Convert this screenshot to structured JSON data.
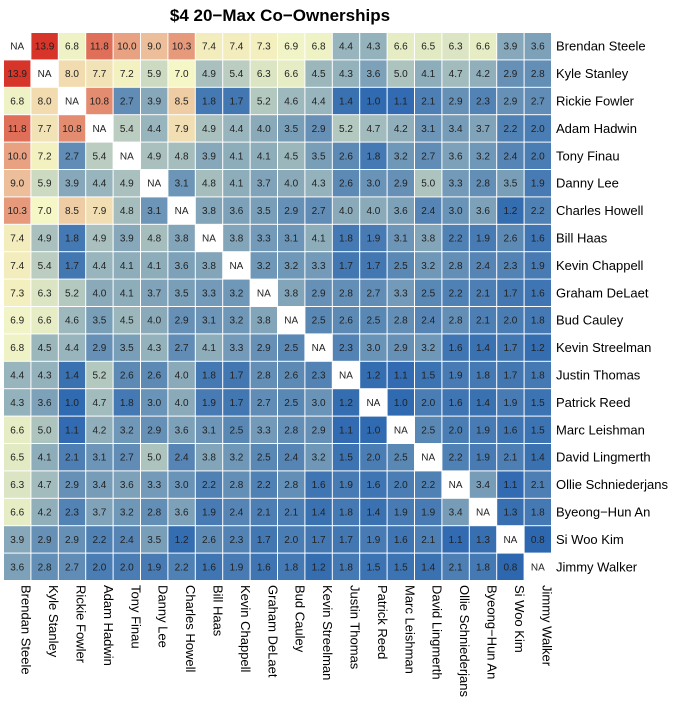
{
  "chart_data": {
    "type": "heatmap",
    "title": "$4 20−Max Co−Ownerships",
    "na_label": "NA",
    "players": [
      "Brendan Steele",
      "Kyle Stanley",
      "Rickie Fowler",
      "Adam Hadwin",
      "Tony Finau",
      "Danny Lee",
      "Charles Howell",
      "Bill Haas",
      "Kevin Chappell",
      "Graham DeLaet",
      "Bud Cauley",
      "Kevin Streelman",
      "Justin Thomas",
      "Patrick Reed",
      "Marc Leishman",
      "David Lingmerth",
      "Ollie Schniederjans",
      "Byeong−Hun An",
      "Si Woo Kim",
      "Jimmy Walker"
    ],
    "values": [
      [
        null,
        13.9,
        6.8,
        11.8,
        10.0,
        9.0,
        10.3,
        7.4,
        7.4,
        7.3,
        6.9,
        6.8,
        4.4,
        4.3,
        6.6,
        6.5,
        6.3,
        6.6,
        3.9,
        3.6
      ],
      [
        13.9,
        null,
        8.0,
        7.7,
        7.2,
        5.9,
        7.0,
        4.9,
        5.4,
        6.3,
        6.6,
        4.5,
        4.3,
        3.6,
        5.0,
        4.1,
        4.7,
        4.2,
        2.9,
        2.8
      ],
      [
        6.8,
        8.0,
        null,
        10.8,
        2.7,
        3.9,
        8.5,
        1.8,
        1.7,
        5.2,
        4.6,
        4.4,
        1.4,
        1.0,
        1.1,
        2.1,
        2.9,
        2.3,
        2.9,
        2.7
      ],
      [
        11.8,
        7.7,
        10.8,
        null,
        5.4,
        4.4,
        7.9,
        4.9,
        4.4,
        4.0,
        3.5,
        2.9,
        5.2,
        4.7,
        4.2,
        3.1,
        3.4,
        3.7,
        2.2,
        2.0
      ],
      [
        10.0,
        7.2,
        2.7,
        5.4,
        null,
        4.9,
        4.8,
        3.9,
        4.1,
        4.1,
        4.5,
        3.5,
        2.6,
        1.8,
        3.2,
        2.7,
        3.6,
        3.2,
        2.4,
        2.0
      ],
      [
        9.0,
        5.9,
        3.9,
        4.4,
        4.9,
        null,
        3.1,
        4.8,
        4.1,
        3.7,
        4.0,
        4.3,
        2.6,
        3.0,
        2.9,
        5.0,
        3.3,
        2.8,
        3.5,
        1.9
      ],
      [
        10.3,
        7.0,
        8.5,
        7.9,
        4.8,
        3.1,
        null,
        3.8,
        3.6,
        3.5,
        2.9,
        2.7,
        4.0,
        4.0,
        3.6,
        2.4,
        3.0,
        3.6,
        1.2,
        2.2
      ],
      [
        7.4,
        4.9,
        1.8,
        4.9,
        3.9,
        4.8,
        3.8,
        null,
        3.8,
        3.3,
        3.1,
        4.1,
        1.8,
        1.9,
        3.1,
        3.8,
        2.2,
        1.9,
        2.6,
        1.6
      ],
      [
        7.4,
        5.4,
        1.7,
        4.4,
        4.1,
        4.1,
        3.6,
        3.8,
        null,
        3.2,
        3.2,
        3.3,
        1.7,
        1.7,
        2.5,
        3.2,
        2.8,
        2.4,
        2.3,
        1.9
      ],
      [
        7.3,
        6.3,
        5.2,
        4.0,
        4.1,
        3.7,
        3.5,
        3.3,
        3.2,
        null,
        3.8,
        2.9,
        2.8,
        2.7,
        3.3,
        2.5,
        2.2,
        2.1,
        1.7,
        1.6
      ],
      [
        6.9,
        6.6,
        4.6,
        3.5,
        4.5,
        4.0,
        2.9,
        3.1,
        3.2,
        3.8,
        null,
        2.5,
        2.6,
        2.5,
        2.8,
        2.4,
        2.8,
        2.1,
        2.0,
        1.8
      ],
      [
        6.8,
        4.5,
        4.4,
        2.9,
        3.5,
        4.3,
        2.7,
        4.1,
        3.3,
        2.9,
        2.5,
        null,
        2.3,
        3.0,
        2.9,
        3.2,
        1.6,
        1.4,
        1.7,
        1.2
      ],
      [
        4.4,
        4.3,
        1.4,
        5.2,
        2.6,
        2.6,
        4.0,
        1.8,
        1.7,
        2.8,
        2.6,
        2.3,
        null,
        1.2,
        1.1,
        1.5,
        1.9,
        1.8,
        1.7,
        1.8
      ],
      [
        4.3,
        3.6,
        1.0,
        4.7,
        1.8,
        3.0,
        4.0,
        1.9,
        1.7,
        2.7,
        2.5,
        3.0,
        1.2,
        null,
        1.0,
        2.0,
        1.6,
        1.4,
        1.9,
        1.5
      ],
      [
        6.6,
        5.0,
        1.1,
        4.2,
        3.2,
        2.9,
        3.6,
        3.1,
        2.5,
        3.3,
        2.8,
        2.9,
        1.1,
        1.0,
        null,
        2.5,
        2.0,
        1.9,
        1.6,
        1.5
      ],
      [
        6.5,
        4.1,
        2.1,
        3.1,
        2.7,
        5.0,
        2.4,
        3.8,
        3.2,
        2.5,
        2.4,
        3.2,
        1.5,
        2.0,
        2.5,
        null,
        2.2,
        1.9,
        2.1,
        1.4
      ],
      [
        6.3,
        4.7,
        2.9,
        3.4,
        3.6,
        3.3,
        3.0,
        2.2,
        2.8,
        2.2,
        2.8,
        1.6,
        1.9,
        1.6,
        2.0,
        2.2,
        null,
        3.4,
        1.1,
        2.1
      ],
      [
        6.6,
        4.2,
        2.3,
        3.7,
        3.2,
        2.8,
        3.6,
        1.9,
        2.4,
        2.1,
        2.1,
        1.4,
        1.8,
        1.4,
        1.9,
        1.9,
        3.4,
        null,
        1.3,
        1.8
      ],
      [
        3.9,
        2.9,
        2.9,
        2.2,
        2.4,
        3.5,
        1.2,
        2.6,
        2.3,
        1.7,
        2.0,
        1.7,
        1.7,
        1.9,
        1.6,
        2.1,
        1.1,
        1.3,
        null,
        0.8
      ],
      [
        3.6,
        2.8,
        2.7,
        2.0,
        2.0,
        1.9,
        2.2,
        1.6,
        1.9,
        1.6,
        1.8,
        1.2,
        1.8,
        1.5,
        1.5,
        1.4,
        2.1,
        1.8,
        0.8,
        null
      ]
    ],
    "color_scale": {
      "low_color": "#2c67b0",
      "mid_color": "#f5f7c6",
      "high_color": "#d7342a",
      "na_color": "#ffffff"
    },
    "grid": false,
    "legend": "none"
  }
}
